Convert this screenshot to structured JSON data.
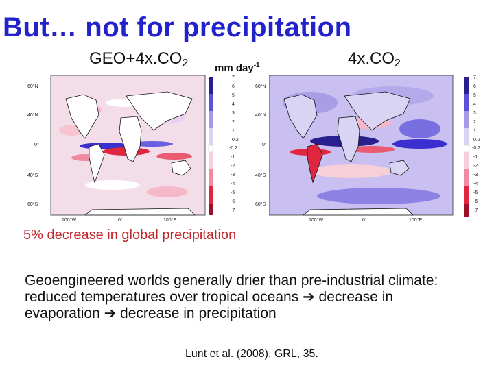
{
  "slide": {
    "title": "But… not for precipitation",
    "left_label": {
      "text": "GEO+4x.CO",
      "sub": "2"
    },
    "right_label": {
      "text": "4x.CO",
      "sub": "2"
    },
    "units": {
      "text": "mm day",
      "sup": "-1"
    },
    "finding": "5% decrease in global precipitation",
    "body_lines": [
      "Geoengineered worlds generally drier than pre-industrial climate:",
      "reduced temperatures over tropical oceans",
      "decrease in",
      "evaporation",
      "decrease in precipitation"
    ],
    "arrow_icon": "right-arrow-icon",
    "citation": "Lunt et al. (2008), GRL, 35."
  },
  "maps": {
    "lat_ticks": [
      "60°N",
      "40°N",
      "0°",
      "40°S",
      "60°S"
    ],
    "lon_ticks": [
      "100°W",
      "0°",
      "100°E"
    ],
    "colorbar_labels": [
      "7",
      "6",
      "5",
      "4",
      "3",
      "2",
      "1",
      "0.2",
      "-0.2",
      "-1",
      "-2",
      "-3",
      "-4",
      "-5",
      "-6",
      "-7"
    ],
    "colors": {
      "wet": "#3b2fd0",
      "dry": "#e0263f",
      "title": "#2222cc",
      "finding": "#c0262a"
    }
  }
}
